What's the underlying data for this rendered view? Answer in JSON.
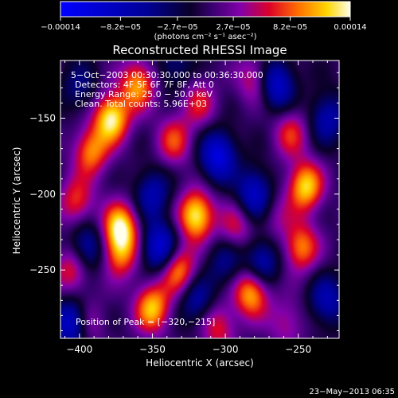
{
  "chart_data": {
    "type": "heatmap",
    "title": "Reconstructed RHESSI Image",
    "xlabel": "Heliocentric X (arcsec)",
    "ylabel": "Heliocentric Y (arcsec)",
    "xlim": [
      -413,
      -222
    ],
    "ylim": [
      -295,
      -112
    ],
    "xticks": [
      -400,
      -350,
      -300,
      -250
    ],
    "xtick_labels": [
      "−400",
      "−350",
      "−300",
      "−250"
    ],
    "yticks": [
      -150,
      -200,
      -250
    ],
    "ytick_labels": [
      "−150",
      "−200",
      "−250"
    ],
    "colorbar": {
      "range": [
        -0.00014,
        0.00014
      ],
      "ticks": [
        -0.00014,
        -8.2e-05,
        -2.7e-05,
        2.7e-05,
        8.2e-05,
        0.00014
      ],
      "tick_labels": [
        "−0.00014",
        "−8.2e−05",
        "−2.7e−05",
        "2.7e−05",
        "8.2e−05",
        "0.00014"
      ],
      "unit_label": "(photons cm⁻² s⁻¹ asec⁻²)"
    },
    "annotations": {
      "time": "5−Oct−2003 00:30:30.000 to 00:36:30.000",
      "detectors": "Detectors: 4F 5F 6F 7F 8F, Att 0",
      "energy": "Energy Range: 25.0 − 50.0 keV",
      "clean": "Clean.   Total counts: 5.96E+03",
      "peak": "Position of Peak = [−320,−215]"
    },
    "peak": [
      -320,
      -215
    ],
    "blobs": [
      {
        "x": -378,
        "y": -150,
        "v": 1.0
      },
      {
        "x": -392,
        "y": -172,
        "v": 0.7
      },
      {
        "x": -360,
        "y": -128,
        "v": 0.75
      },
      {
        "x": -402,
        "y": -205,
        "v": 0.55
      },
      {
        "x": -372,
        "y": -222,
        "v": 0.95
      },
      {
        "x": -372,
        "y": -240,
        "v": 0.6
      },
      {
        "x": -405,
        "y": -250,
        "v": 0.55
      },
      {
        "x": -320,
        "y": -214,
        "v": 1.0
      },
      {
        "x": -332,
        "y": -250,
        "v": 0.75
      },
      {
        "x": -335,
        "y": -165,
        "v": 0.55
      },
      {
        "x": -350,
        "y": -275,
        "v": 0.85
      },
      {
        "x": -282,
        "y": -265,
        "v": 0.85
      },
      {
        "x": -293,
        "y": -222,
        "v": 0.45
      },
      {
        "x": -245,
        "y": -195,
        "v": 0.9
      },
      {
        "x": -248,
        "y": -235,
        "v": 0.7
      },
      {
        "x": -255,
        "y": -160,
        "v": 0.5
      },
      {
        "x": -318,
        "y": -140,
        "v": 0.45
      },
      {
        "x": -280,
        "y": -125,
        "v": 0.45
      },
      {
        "x": -395,
        "y": -285,
        "v": 0.4
      },
      {
        "x": -258,
        "y": -285,
        "v": 0.35
      },
      {
        "x": -305,
        "y": -288,
        "v": 0.5
      },
      {
        "x": -265,
        "y": -215,
        "v": 0.25
      },
      {
        "x": -395,
        "y": -235,
        "v": -0.6
      },
      {
        "x": -405,
        "y": -285,
        "v": -0.85
      },
      {
        "x": -345,
        "y": -235,
        "v": -0.8
      },
      {
        "x": -350,
        "y": -200,
        "v": -0.55
      },
      {
        "x": -305,
        "y": -175,
        "v": -0.85
      },
      {
        "x": -265,
        "y": -128,
        "v": -0.75
      },
      {
        "x": -230,
        "y": -150,
        "v": -0.55
      },
      {
        "x": -280,
        "y": -200,
        "v": -0.7
      },
      {
        "x": -275,
        "y": -245,
        "v": -0.6
      },
      {
        "x": -230,
        "y": -270,
        "v": -0.55
      },
      {
        "x": -320,
        "y": -270,
        "v": -0.5
      },
      {
        "x": -400,
        "y": -130,
        "v": -0.35
      },
      {
        "x": -335,
        "y": -115,
        "v": -0.35
      },
      {
        "x": -300,
        "y": -245,
        "v": -0.4
      }
    ]
  },
  "timestamp": "23−May−2013 06:35"
}
